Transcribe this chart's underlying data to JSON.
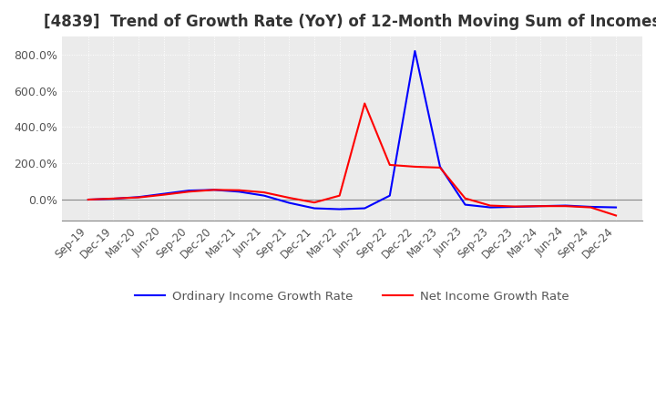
{
  "title": "[4839]  Trend of Growth Rate (YoY) of 12-Month Moving Sum of Incomes",
  "title_fontsize": 12,
  "background_color": "#ffffff",
  "plot_bg_color": "#ebebeb",
  "grid_color": "#ffffff",
  "grid_style": "dotted",
  "legend_labels": [
    "Ordinary Income Growth Rate",
    "Net Income Growth Rate"
  ],
  "legend_colors": [
    "#0000ff",
    "#ff0000"
  ],
  "dates": [
    "Sep-19",
    "Dec-19",
    "Mar-20",
    "Jun-20",
    "Sep-20",
    "Dec-20",
    "Mar-21",
    "Jun-21",
    "Sep-21",
    "Dec-21",
    "Mar-22",
    "Jun-22",
    "Sep-22",
    "Dec-22",
    "Mar-23",
    "Jun-23",
    "Sep-23",
    "Dec-23",
    "Mar-24",
    "Jun-24",
    "Sep-24",
    "Dec-24"
  ],
  "ordinary_income": [
    -2,
    3,
    12,
    30,
    48,
    52,
    42,
    20,
    -20,
    -50,
    -55,
    -50,
    20,
    820,
    180,
    -30,
    -45,
    -42,
    -38,
    -35,
    -42,
    -45
  ],
  "net_income": [
    -2,
    4,
    10,
    25,
    42,
    52,
    50,
    38,
    8,
    -18,
    20,
    530,
    190,
    180,
    175,
    5,
    -35,
    -40,
    -38,
    -38,
    -45,
    -90
  ],
  "ylim": [
    -120,
    900
  ],
  "yticks": [
    0,
    200,
    400,
    600,
    800
  ],
  "zero_line_color": "#888888",
  "line_width": 1.5
}
